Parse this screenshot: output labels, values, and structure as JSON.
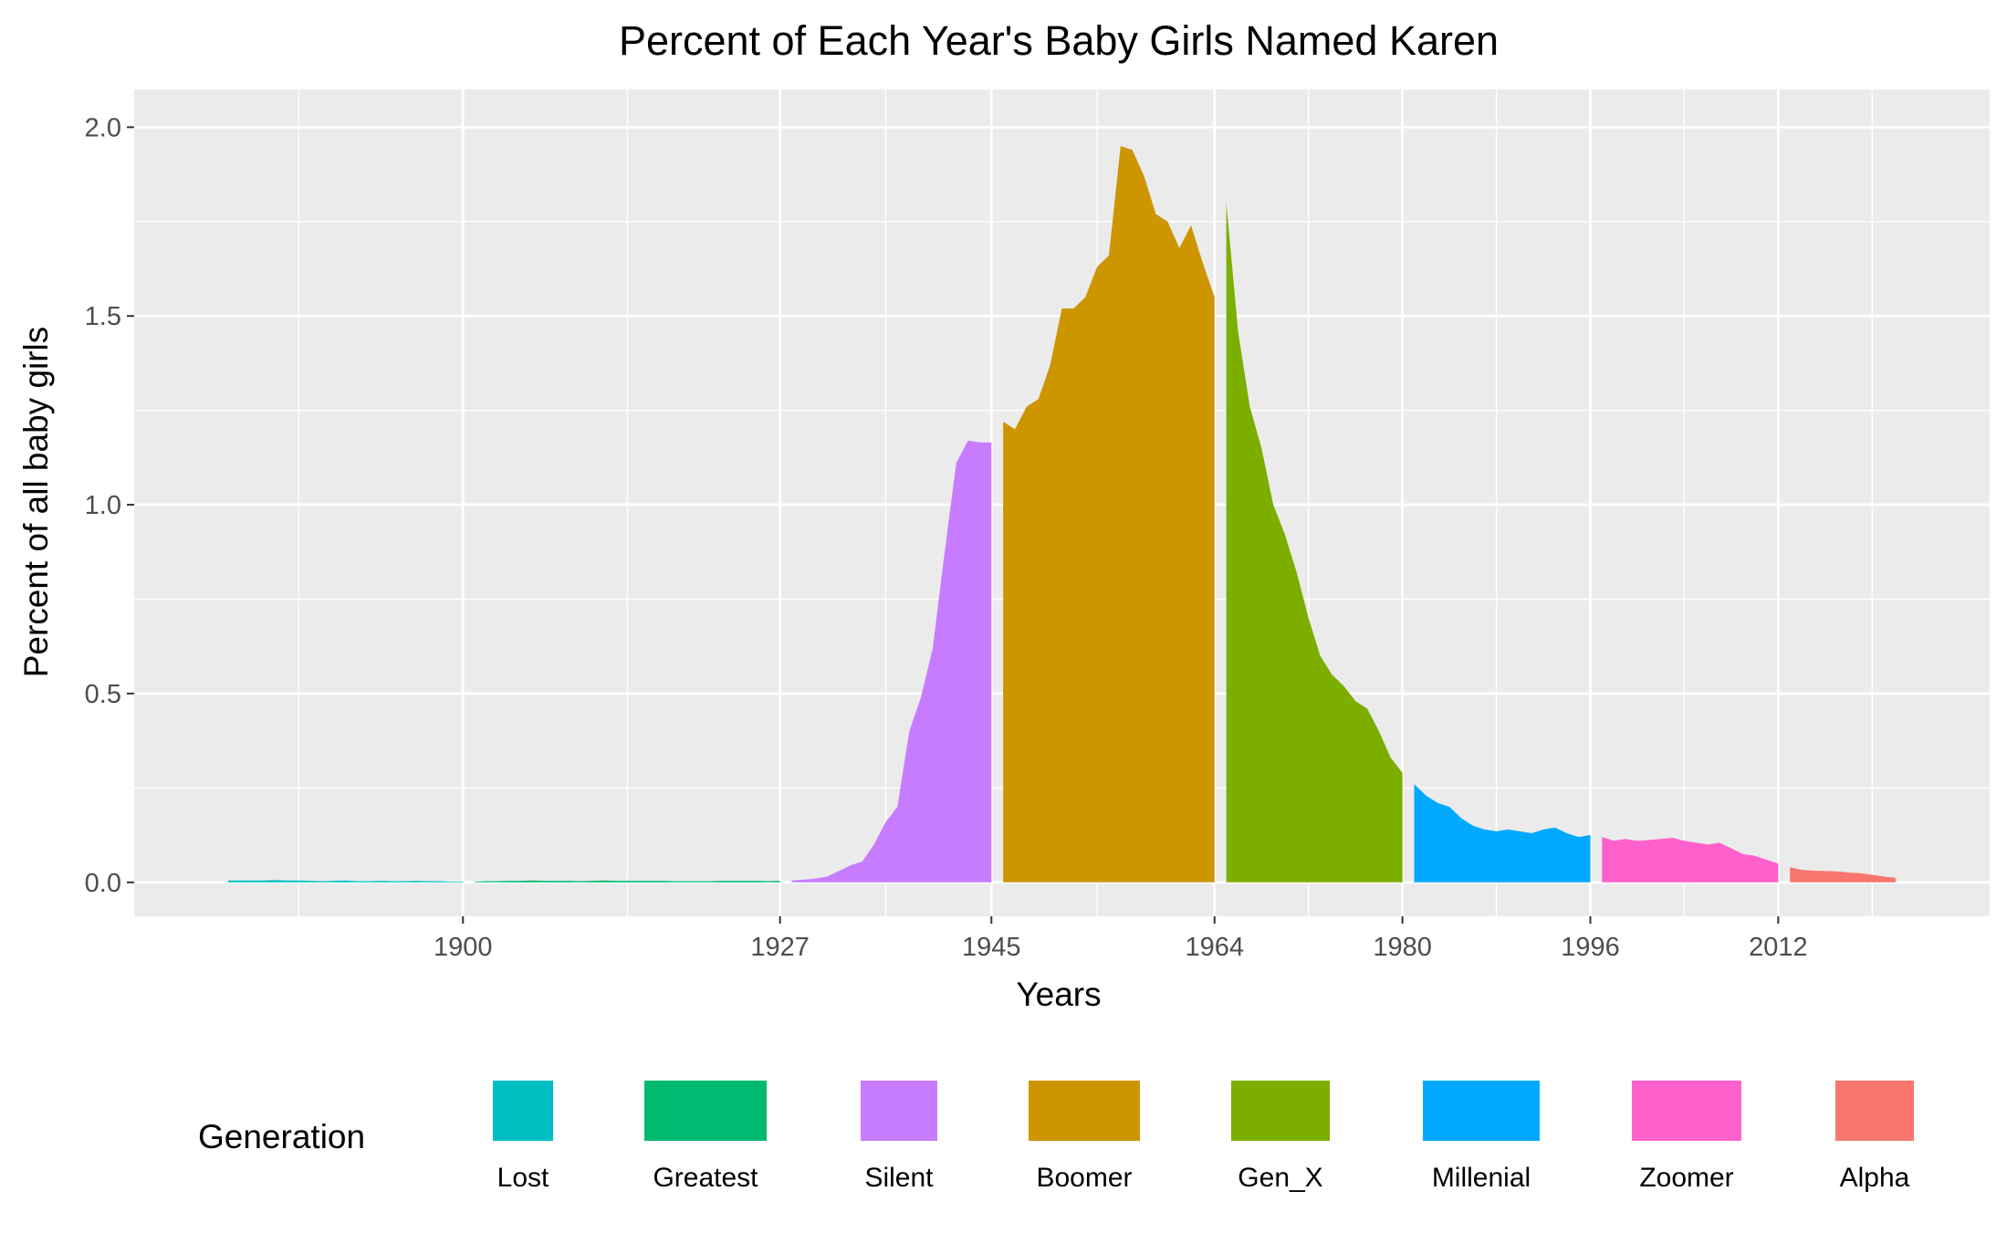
{
  "chart_data": {
    "type": "area",
    "title": "Percent of Each Year's Baby Girls Named Karen",
    "xlabel": "Years",
    "ylabel": "Percent of all baby girls",
    "xlim": [
      1872,
      2030
    ],
    "ylim": [
      -0.09,
      2.1
    ],
    "x_ticks": [
      1900,
      1927,
      1945,
      1964,
      1980,
      1996,
      2012
    ],
    "x_minor_ticks": [
      1886,
      1914,
      1936,
      1954,
      1972,
      1988,
      2004,
      2020
    ],
    "y_ticks": [
      0.0,
      0.5,
      1.0,
      1.5,
      2.0
    ],
    "y_tick_labels": [
      "0.0",
      "0.5",
      "1.0",
      "1.5",
      "2.0"
    ],
    "grid": true,
    "legend": {
      "title": "Generation",
      "position": "bottom"
    },
    "series": [
      {
        "name": "Lost",
        "color": "#00BFC4",
        "x": [
          1880,
          1881,
          1882,
          1883,
          1884,
          1885,
          1886,
          1887,
          1888,
          1889,
          1890,
          1891,
          1892,
          1893,
          1894,
          1895,
          1896,
          1897,
          1898,
          1899,
          1900
        ],
        "values": [
          0.005,
          0.005,
          0.005,
          0.005,
          0.006,
          0.005,
          0.005,
          0.004,
          0.003,
          0.004,
          0.005,
          0.003,
          0.003,
          0.004,
          0.003,
          0.003,
          0.004,
          0.003,
          0.003,
          0.002,
          0.002
        ]
      },
      {
        "name": "Greatest",
        "color": "#00BA6F",
        "x": [
          1901,
          1902,
          1903,
          1904,
          1905,
          1906,
          1907,
          1908,
          1909,
          1910,
          1911,
          1912,
          1913,
          1914,
          1915,
          1916,
          1917,
          1918,
          1919,
          1920,
          1921,
          1922,
          1923,
          1924,
          1925,
          1926,
          1927
        ],
        "values": [
          0.002,
          0.003,
          0.003,
          0.004,
          0.004,
          0.005,
          0.004,
          0.004,
          0.004,
          0.003,
          0.004,
          0.005,
          0.004,
          0.004,
          0.004,
          0.004,
          0.004,
          0.003,
          0.003,
          0.003,
          0.003,
          0.004,
          0.004,
          0.004,
          0.004,
          0.003,
          0.004
        ]
      },
      {
        "name": "Silent",
        "color": "#C77CFF",
        "x": [
          1928,
          1929,
          1930,
          1931,
          1932,
          1933,
          1934,
          1935,
          1936,
          1937,
          1938,
          1939,
          1940,
          1941,
          1942,
          1943,
          1944,
          1945
        ],
        "values": [
          0.005,
          0.007,
          0.01,
          0.015,
          0.03,
          0.045,
          0.055,
          0.1,
          0.16,
          0.2,
          0.4,
          0.49,
          0.62,
          0.87,
          1.11,
          1.17,
          1.165,
          1.165
        ]
      },
      {
        "name": "Boomer",
        "color": "#CD9600",
        "x": [
          1946,
          1947,
          1948,
          1949,
          1950,
          1951,
          1952,
          1953,
          1954,
          1955,
          1956,
          1957,
          1958,
          1959,
          1960,
          1961,
          1962,
          1963,
          1964
        ],
        "values": [
          1.22,
          1.2,
          1.26,
          1.28,
          1.37,
          1.52,
          1.52,
          1.55,
          1.63,
          1.66,
          1.95,
          1.94,
          1.87,
          1.77,
          1.75,
          1.68,
          1.74,
          1.64,
          1.55
        ]
      },
      {
        "name": "Gen_X",
        "color": "#7CAE00",
        "x": [
          1965,
          1966,
          1967,
          1968,
          1969,
          1970,
          1971,
          1972,
          1973,
          1974,
          1975,
          1976,
          1977,
          1978,
          1979,
          1980
        ],
        "values": [
          1.8,
          1.46,
          1.26,
          1.15,
          1.0,
          0.92,
          0.82,
          0.7,
          0.6,
          0.55,
          0.52,
          0.48,
          0.46,
          0.4,
          0.33,
          0.29
        ]
      },
      {
        "name": "Millenial",
        "color": "#00A9FF",
        "x": [
          1981,
          1982,
          1983,
          1984,
          1985,
          1986,
          1987,
          1988,
          1989,
          1990,
          1991,
          1992,
          1993,
          1994,
          1995,
          1996
        ],
        "values": [
          0.26,
          0.23,
          0.21,
          0.2,
          0.17,
          0.15,
          0.14,
          0.135,
          0.14,
          0.135,
          0.13,
          0.14,
          0.145,
          0.13,
          0.12,
          0.125
        ]
      },
      {
        "name": "Zoomer",
        "color": "#FF61CC",
        "x": [
          1997,
          1998,
          1999,
          2000,
          2001,
          2002,
          2003,
          2004,
          2005,
          2006,
          2007,
          2008,
          2009,
          2010,
          2011,
          2012
        ],
        "values": [
          0.12,
          0.11,
          0.115,
          0.11,
          0.112,
          0.115,
          0.118,
          0.11,
          0.105,
          0.1,
          0.105,
          0.09,
          0.075,
          0.07,
          0.06,
          0.05
        ]
      },
      {
        "name": "Alpha",
        "color": "#F8766D",
        "x": [
          2013,
          2014,
          2015,
          2016,
          2017,
          2018,
          2019,
          2020,
          2021,
          2022
        ],
        "values": [
          0.04,
          0.033,
          0.031,
          0.03,
          0.029,
          0.026,
          0.024,
          0.02,
          0.015,
          0.012
        ]
      }
    ]
  }
}
